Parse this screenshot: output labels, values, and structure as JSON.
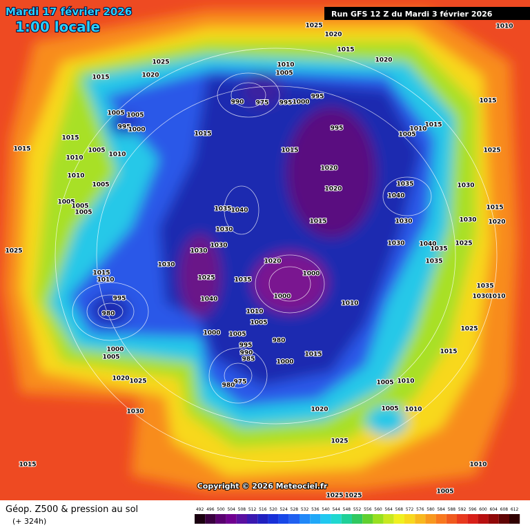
{
  "header": {
    "date": "Mardi 17 février 2026",
    "local_time": "1:00 locale",
    "run": "Run GFS 12 Z du Mardi 3 février 2026"
  },
  "copyright": "Copyright © 2026 Meteociel.fr",
  "footer": {
    "field": "Géop. Z500 & pression au sol",
    "lead_time": "(+ 324h)"
  },
  "colorbar_labels": [
    492,
    496,
    500,
    504,
    508,
    512,
    516,
    520,
    524,
    528,
    532,
    536,
    540,
    544,
    548,
    552,
    556,
    560,
    564,
    568,
    572,
    576,
    580,
    584,
    588,
    592,
    596,
    600,
    604,
    608,
    612
  ],
  "pressure_labels": [
    1025,
    1020,
    1010,
    1015,
    1025,
    1020,
    1015,
    1020,
    1010,
    1005,
    995,
    990,
    975,
    995,
    1000,
    1015,
    1005,
    1005,
    995,
    1000,
    1015,
    995,
    1010,
    1005,
    1015,
    1015,
    1015,
    1005,
    1010,
    1015,
    1025,
    1010,
    1020,
    1010,
    1005,
    1035,
    1030,
    1020,
    1040,
    1005,
    1005,
    1035,
    1040,
    1015,
    1005,
    1015,
    1030,
    1030,
    1020,
    1030,
    1025,
    1030,
    1030,
    1030,
    1040,
    1025,
    1035,
    1020,
    1030,
    1035,
    1015,
    1010,
    1000,
    1025,
    1035,
    1035,
    995,
    1000,
    1040,
    1030,
    1010,
    980,
    1010,
    1010,
    1005,
    1000,
    1005,
    1025,
    980,
    995,
    990,
    1000,
    1015,
    985,
    1005,
    1000,
    1015,
    1020,
    1025,
    975,
    980,
    1005,
    1010,
    1005,
    1010,
    1030,
    1020,
    1025,
    1015,
    1010,
    1005,
    1025,
    1025
  ]
}
